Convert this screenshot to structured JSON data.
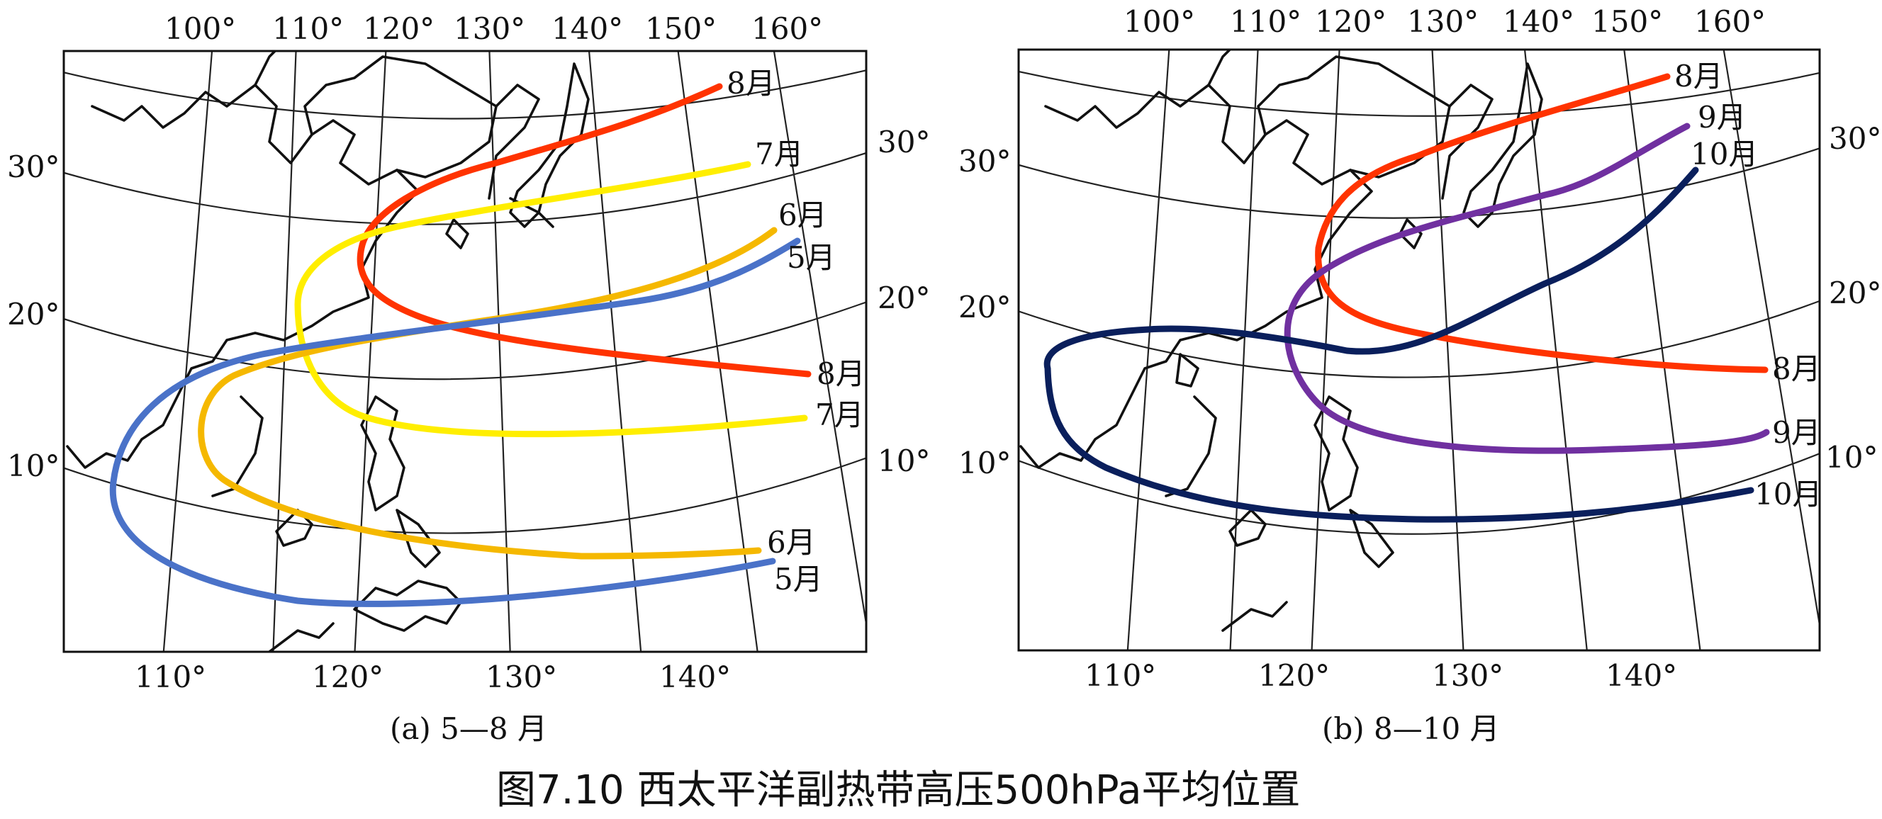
{
  "figure_title": "图7.10 西太平洋副热带高压500hPa平均位置",
  "panels": [
    {
      "id": "a",
      "caption": "(a) 5—8 月",
      "top_lon_ticks": [
        "100°",
        "110°",
        "120°",
        "130°",
        "140°",
        "150°",
        "160°"
      ],
      "bottom_lon_ticks": [
        "110°",
        "120°",
        "130°",
        "140°"
      ],
      "left_lat_ticks": [
        "30°",
        "20°",
        "10°"
      ],
      "right_lat_ticks": [
        "30°",
        "20°",
        "10°"
      ],
      "ridge_lines": [
        {
          "month": "8月",
          "color": "#ff3300",
          "labels": [
            "8月",
            "8月"
          ]
        },
        {
          "month": "7月",
          "color": "#ffee00",
          "labels": [
            "7月",
            "7月"
          ]
        },
        {
          "month": "6月",
          "color": "#f5b800",
          "labels": [
            "6月",
            "6月"
          ]
        },
        {
          "month": "5月",
          "color": "#4a72c8",
          "labels": [
            "5月",
            "5月"
          ]
        }
      ]
    },
    {
      "id": "b",
      "caption": "(b) 8—10 月",
      "top_lon_ticks": [
        "100°",
        "110°",
        "120°",
        "130°",
        "140°",
        "150°",
        "160°"
      ],
      "bottom_lon_ticks": [
        "110°",
        "120°",
        "130°",
        "140°"
      ],
      "left_lat_ticks": [
        "30°",
        "20°",
        "10°"
      ],
      "right_lat_ticks": [
        "30°",
        "20°",
        "10°"
      ],
      "ridge_lines": [
        {
          "month": "8月",
          "color": "#ff3300",
          "labels": [
            "8月",
            "8月"
          ]
        },
        {
          "month": "9月",
          "color": "#7030a0",
          "labels": [
            "9月",
            "9月"
          ]
        },
        {
          "month": "10月",
          "color": "#0a1f5c",
          "labels": [
            "10月",
            "10月"
          ]
        }
      ]
    }
  ]
}
